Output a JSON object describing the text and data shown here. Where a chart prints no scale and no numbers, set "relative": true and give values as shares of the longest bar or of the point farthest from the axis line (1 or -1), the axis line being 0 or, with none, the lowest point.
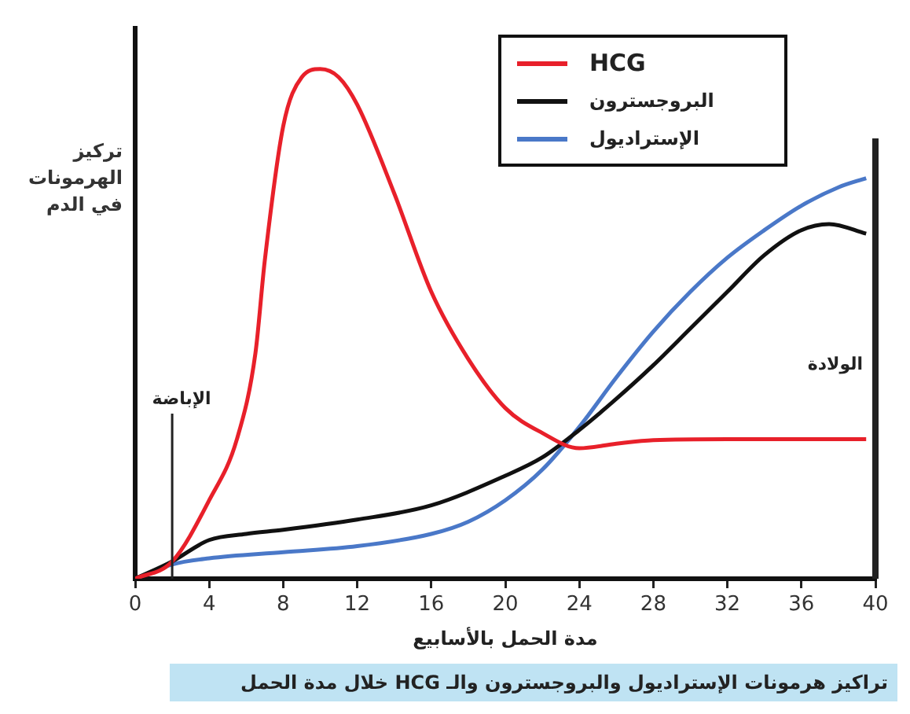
{
  "chart_data": {
    "type": "line",
    "relative": true,
    "xlabel": "مدة الحمل بالأسابيع",
    "ylabel": "تركيز الهرمونات في الدم",
    "xlim": [
      0,
      40
    ],
    "xticks": [
      0,
      4,
      8,
      12,
      16,
      20,
      24,
      28,
      32,
      36,
      40
    ],
    "grid": false,
    "legend": "top right",
    "marker": "none",
    "line_style": "solid",
    "series": [
      {
        "name": "HCG",
        "color": "#e8202a",
        "x": [
          0,
          2,
          4,
          5.5,
          6.5,
          7,
          8,
          9,
          10,
          11,
          12,
          14,
          16,
          18,
          20,
          22,
          24,
          26,
          28,
          32,
          39.5
        ],
        "values": [
          0,
          0.034,
          0.154,
          0.274,
          0.443,
          0.623,
          0.888,
          0.984,
          1,
          0.984,
          0.93,
          0.756,
          0.563,
          0.431,
          0.335,
          0.286,
          0.256,
          0.265,
          0.272,
          0.274,
          0.274
        ]
      },
      {
        "name": "البروجسترون",
        "color": "#111111",
        "x": [
          0,
          2,
          4,
          6,
          8,
          12,
          16,
          20,
          22,
          24,
          26,
          28,
          30,
          32,
          34,
          36,
          37.5,
          39.5
        ],
        "values": [
          0,
          0.034,
          0.076,
          0.088,
          0.096,
          0.116,
          0.144,
          0.202,
          0.238,
          0.292,
          0.353,
          0.419,
          0.491,
          0.563,
          0.635,
          0.684,
          0.696,
          0.677
        ]
      },
      {
        "name": "الإستراديول",
        "color": "#4a78c8",
        "x": [
          0,
          2,
          4,
          8,
          12,
          16,
          18,
          20,
          22,
          24,
          26,
          28,
          30,
          32,
          34,
          36,
          38,
          39.5
        ],
        "values": [
          0,
          0.028,
          0.04,
          0.052,
          0.064,
          0.088,
          0.112,
          0.154,
          0.214,
          0.298,
          0.395,
          0.485,
          0.563,
          0.63,
          0.684,
          0.732,
          0.768,
          0.786
        ]
      }
    ],
    "ref_lines": [
      {
        "axis": "x",
        "value": 2,
        "label": "الإباضة"
      },
      {
        "axis": "x",
        "value": 40,
        "label": "الولادة"
      }
    ],
    "annotations": [
      "تراكيز هرمونات الإستراديول والبروجسترون والـ HCG خلال مدة الحمل"
    ]
  }
}
